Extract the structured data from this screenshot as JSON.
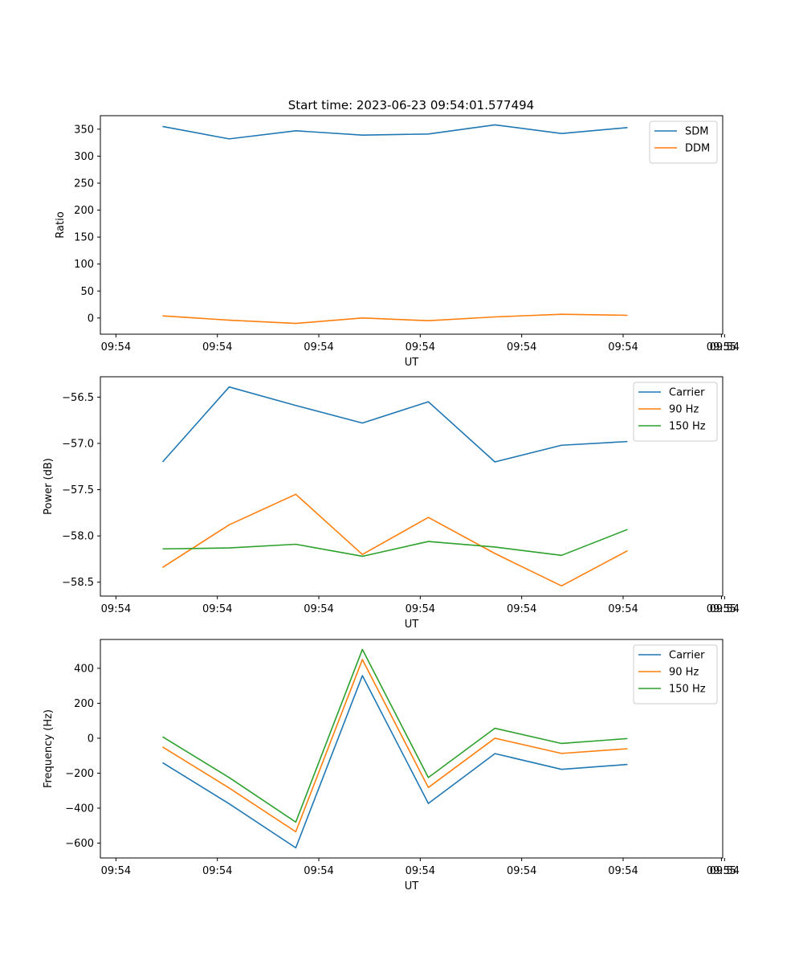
{
  "figure": {
    "title": "Start time: 2023-06-23 09:54:01.577494"
  },
  "chart_data": [
    {
      "type": "line",
      "title": "Start time: 2023-06-23 09:54:01.577494",
      "xlabel": "UT",
      "ylabel": "Ratio",
      "x_tick_labels": [
        "09:54",
        "09:54",
        "09:54",
        "09:54",
        "09:54",
        "09:54",
        "09:54",
        "09:55"
      ],
      "y_ticks": [
        0,
        50,
        100,
        150,
        200,
        250,
        300,
        350
      ],
      "ylim": [
        -30,
        375
      ],
      "grid": false,
      "legend_position": "top-right",
      "series": [
        {
          "name": "SDM",
          "color": "#1f77b4",
          "values": [
            355,
            332,
            347,
            339,
            341,
            358,
            342,
            353
          ]
        },
        {
          "name": "DDM",
          "color": "#ff7f0e",
          "values": [
            4,
            -4,
            -10,
            0,
            -5,
            2,
            7,
            5
          ]
        }
      ]
    },
    {
      "type": "line",
      "xlabel": "UT",
      "ylabel": "Power (dB)",
      "x_tick_labels": [
        "09:54",
        "09:54",
        "09:54",
        "09:54",
        "09:54",
        "09:54",
        "09:54",
        "09:55"
      ],
      "y_ticks": [
        -58.5,
        -58.0,
        -57.5,
        -57.0,
        -56.5
      ],
      "y_tick_labels": [
        "−58.5",
        "−58.0",
        "−57.5",
        "−57.0",
        "−56.5"
      ],
      "ylim": [
        -58.65,
        -56.28
      ],
      "grid": false,
      "legend_position": "top-right",
      "series": [
        {
          "name": "Carrier",
          "color": "#1f77b4",
          "values": [
            -57.2,
            -56.39,
            -56.59,
            -56.78,
            -56.55,
            -57.2,
            -57.02,
            -56.98
          ]
        },
        {
          "name": "90 Hz",
          "color": "#ff7f0e",
          "values": [
            -58.34,
            -57.88,
            -57.55,
            -58.2,
            -57.8,
            -58.19,
            -58.54,
            -58.16
          ]
        },
        {
          "name": "150 Hz",
          "color": "#2ca02c",
          "values": [
            -58.14,
            -58.13,
            -58.09,
            -58.22,
            -58.06,
            -58.12,
            -58.21,
            -57.93
          ]
        }
      ]
    },
    {
      "type": "line",
      "xlabel": "UT",
      "ylabel": "Frequency (Hz)",
      "x_tick_labels": [
        "09:54",
        "09:54",
        "09:54",
        "09:54",
        "09:54",
        "09:54",
        "09:54",
        "09:55"
      ],
      "y_ticks": [
        -600,
        -400,
        -200,
        0,
        200,
        400
      ],
      "y_tick_labels": [
        "−600",
        "−400",
        "−200",
        "0",
        "200",
        "400"
      ],
      "ylim": [
        -685,
        565
      ],
      "grid": false,
      "legend_position": "top-right",
      "series": [
        {
          "name": "Carrier",
          "color": "#1f77b4",
          "values": [
            -140,
            -375,
            -627,
            358,
            -373,
            -88,
            -178,
            -150
          ]
        },
        {
          "name": "90 Hz",
          "color": "#ff7f0e",
          "values": [
            -50,
            -285,
            -535,
            450,
            -282,
            0,
            -87,
            -60
          ]
        },
        {
          "name": "150 Hz",
          "color": "#2ca02c",
          "values": [
            8,
            -225,
            -480,
            508,
            -225,
            57,
            -30,
            -2
          ]
        }
      ]
    }
  ]
}
